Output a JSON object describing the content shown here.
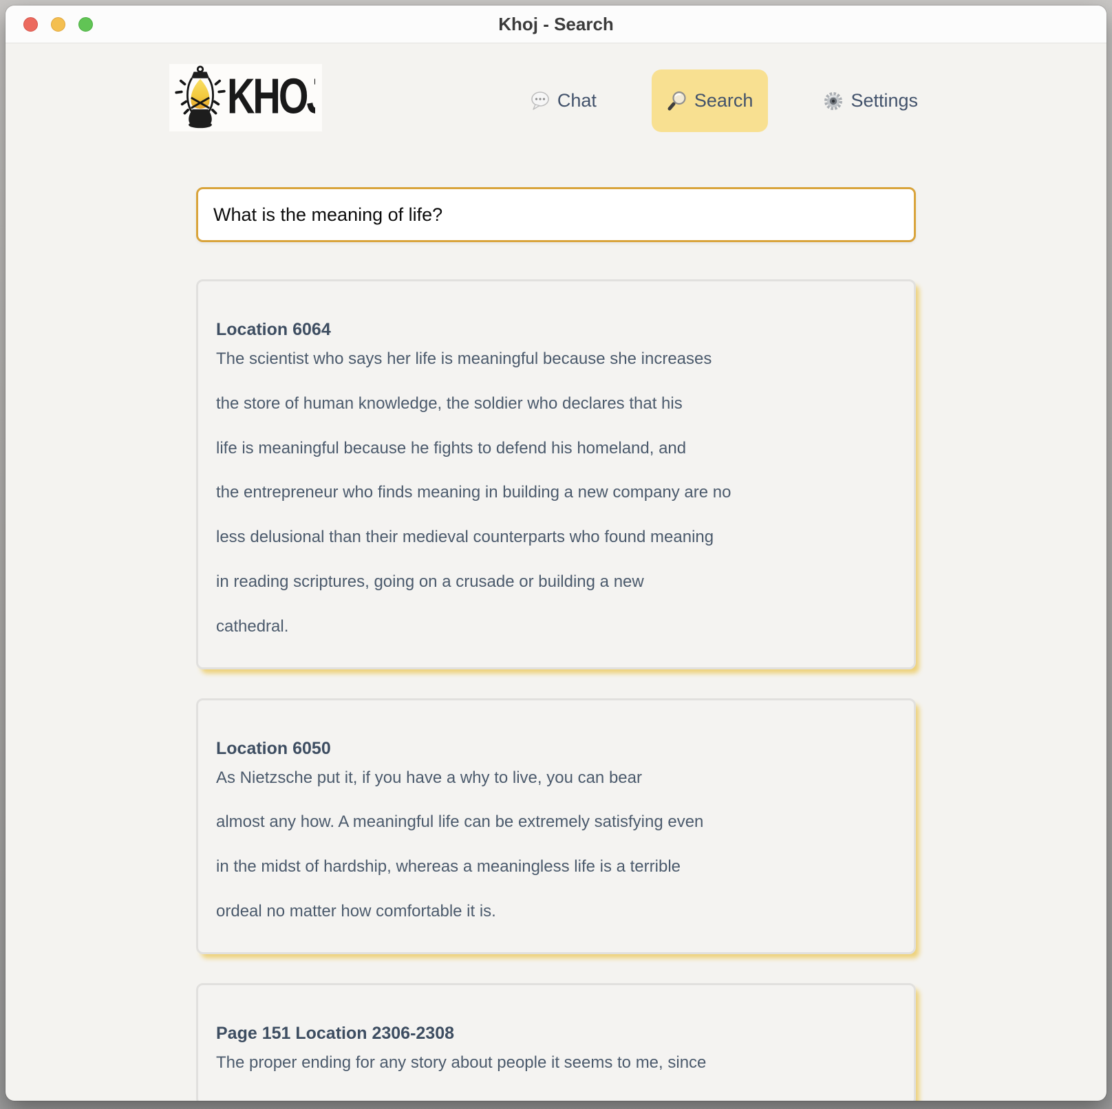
{
  "window": {
    "title": "Khoj - Search"
  },
  "logo": {
    "text": "KHOJ",
    "icon": "lantern-icon"
  },
  "nav": {
    "chat": {
      "label": "Chat",
      "icon": "speech-bubble-icon",
      "active": false
    },
    "search": {
      "label": "Search",
      "icon": "magnifier-icon",
      "active": true
    },
    "settings": {
      "label": "Settings",
      "icon": "gear-icon",
      "active": false
    }
  },
  "search": {
    "value": "What is the meaning of life?"
  },
  "results": [
    {
      "title": "Location 6064",
      "lines": [
        "The scientist who says her life is meaningful because she increases",
        "the store of human knowledge, the soldier who declares that his",
        "life is meaningful because he fights to defend his homeland, and",
        "the entrepreneur who finds meaning in building a new company are no",
        "less delusional than their medieval counterparts who found meaning",
        "in reading scriptures, going on a crusade or building a new",
        "cathedral."
      ]
    },
    {
      "title": "Location 6050",
      "lines": [
        "As Nietzsche put it, if you have a why to live, you can bear",
        "almost any how. A meaningful life can be extremely satisfying even",
        "in the midst of hardship, whereas a meaningless life is a terrible",
        "ordeal no matter how comfortable it is."
      ]
    },
    {
      "title": "Page 151 Location 2306-2308",
      "lines": [
        "The proper ending for any story about people it seems to me, since"
      ]
    }
  ],
  "colors": {
    "accent_yellow": "#f8e091",
    "input_border": "#d9a43c",
    "card_shadow_yellow": "#eed27b",
    "text_slate": "#4b5a6c",
    "traffic_red": "#ec6a5e",
    "traffic_yellow": "#f4bf50",
    "traffic_green": "#61c455"
  }
}
